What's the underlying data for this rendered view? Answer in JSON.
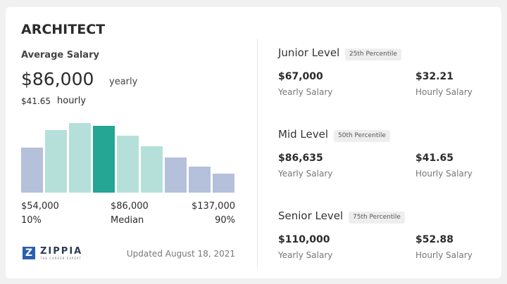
{
  "title": "ARCHITECT",
  "average": {
    "label": "Average Salary",
    "yearly": "$86,000",
    "yearly_unit": "yearly",
    "hourly": "$41.65",
    "hourly_unit": "hourly"
  },
  "histogram": {
    "values": [
      64,
      89,
      99,
      95,
      81,
      66,
      50,
      37,
      27
    ],
    "ylim": [
      0,
      100
    ],
    "colors": [
      "#b5c0da",
      "#b5e0da",
      "#b5e0da",
      "#25a594",
      "#b5e0da",
      "#b5e0da",
      "#b5c0da",
      "#b5c0da",
      "#b5c0da"
    ],
    "labels": [
      {
        "amount": "$54,000",
        "caption": "10%"
      },
      {
        "amount": "$86,000",
        "caption": "Median"
      },
      {
        "amount": "$137,000",
        "caption": "90%"
      }
    ]
  },
  "logo": {
    "name": "ZIPPIA",
    "tagline": "THE CAREER EXPERT"
  },
  "updated": "Updated August 18, 2021",
  "levels": [
    {
      "name": "Junior Level",
      "percentile": "25th Percentile",
      "yearly": "$67,000",
      "yearly_label": "Yearly Salary",
      "hourly": "$32.21",
      "hourly_label": "Hourly Salary"
    },
    {
      "name": "Mid Level",
      "percentile": "50th Percentile",
      "yearly": "$86,635",
      "yearly_label": "Yearly Salary",
      "hourly": "$41.65",
      "hourly_label": "Hourly Salary"
    },
    {
      "name": "Senior Level",
      "percentile": "75th Percentile",
      "yearly": "$110,000",
      "yearly_label": "Yearly Salary",
      "hourly": "$52.88",
      "hourly_label": "Hourly Salary"
    }
  ]
}
